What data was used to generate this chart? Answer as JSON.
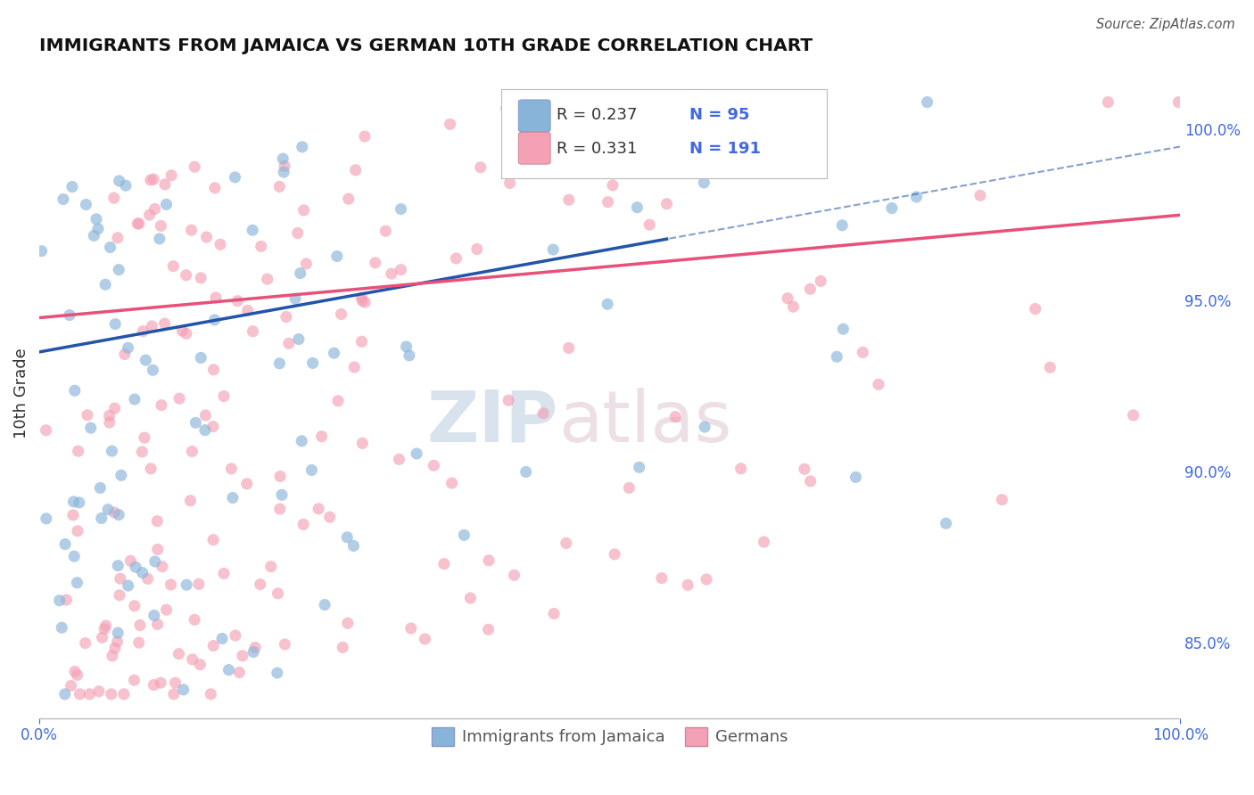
{
  "title": "IMMIGRANTS FROM JAMAICA VS GERMAN 10TH GRADE CORRELATION CHART",
  "source_text": "Source: ZipAtlas.com",
  "ylabel": "10th Grade",
  "xlim": [
    0.0,
    1.0
  ],
  "ylim": [
    0.828,
    1.018
  ],
  "x_tick_labels": [
    "0.0%",
    "100.0%"
  ],
  "right_yticks": [
    0.85,
    0.9,
    0.95,
    1.0
  ],
  "right_yticklabels": [
    "85.0%",
    "90.0%",
    "95.0%",
    "100.0%"
  ],
  "blue_scatter_color": "#89B4D9",
  "pink_scatter_color": "#F4A0B5",
  "blue_line_color": "#2255AA",
  "pink_line_color": "#E8507A",
  "axis_label_color": "#4169E1",
  "title_color": "#111111",
  "source_color": "#555555",
  "background_color": "#ffffff",
  "grid_color": "#cccccc",
  "R_blue": 0.237,
  "N_blue": 95,
  "R_pink": 0.331,
  "N_pink": 191,
  "legend_box_color": "#f5f5f5",
  "legend_border_color": "#cccccc",
  "watermark_zip_color": "#c8d8e8",
  "watermark_atlas_color": "#d8c8d0"
}
